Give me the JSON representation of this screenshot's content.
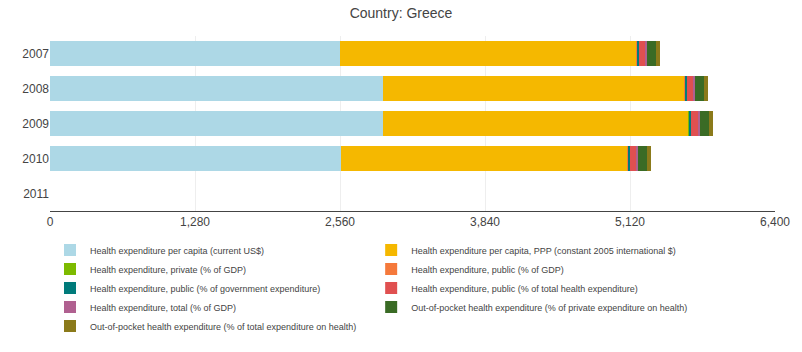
{
  "chart_data": {
    "type": "bar",
    "orientation": "horizontal",
    "stacked": true,
    "title": "Country: Greece",
    "categories": [
      "2007",
      "2008",
      "2009",
      "2010",
      "2011"
    ],
    "series": [
      {
        "name": "Health expenditure per capita (current US$)",
        "color": "#add8e6",
        "values": [
          2562,
          2943,
          2943,
          2566,
          0
        ]
      },
      {
        "name": "Health expenditure per capita, PPP (constant 2005 international $)",
        "color": "#f5b800",
        "values": [
          2615,
          2656,
          2695,
          2530,
          0
        ]
      },
      {
        "name": "Health expenditure, private (% of GDP)",
        "color": "#7dba00",
        "values": [
          3.0,
          3.0,
          3.0,
          3.0,
          0
        ]
      },
      {
        "name": "Health expenditure, public (% of GDP)",
        "color": "#f5793b",
        "values": [
          6.0,
          6.1,
          6.9,
          6.6,
          0
        ]
      },
      {
        "name": "Health expenditure, public (% of government expenditure)",
        "color": "#007b7b",
        "values": [
          12.8,
          12.5,
          14.8,
          12.2,
          0
        ]
      },
      {
        "name": "Health expenditure, public (% of total health expenditure)",
        "color": "#e05050",
        "values": [
          60.3,
          61.0,
          64.4,
          61.4,
          0
        ]
      },
      {
        "name": "Health expenditure, total (% of GDP)",
        "color": "#b06090",
        "values": [
          9.7,
          9.6,
          10.6,
          10.2,
          0
        ]
      },
      {
        "name": "Out-of-pocket health expenditure (% of private expenditure on health)",
        "color": "#3a6b25",
        "values": [
          82.0,
          82.0,
          82.0,
          82.0,
          0
        ]
      },
      {
        "name": "Out-of-pocket health expenditure (% of total expenditure on health)",
        "color": "#8b7a1a",
        "values": [
          32.6,
          31.9,
          31.1,
          31.8,
          0
        ]
      }
    ],
    "xlim": [
      0,
      6400
    ],
    "xticks": [
      0,
      {
        "value": 1280,
        "label": "1,280"
      },
      {
        "value": 2560,
        "label": "2,560"
      },
      {
        "value": 3840,
        "label": "3,840"
      },
      {
        "value": 5120,
        "label": "5,120"
      },
      {
        "value": 6400,
        "label": "6,400"
      }
    ],
    "grid": true,
    "legend": "bottom"
  }
}
